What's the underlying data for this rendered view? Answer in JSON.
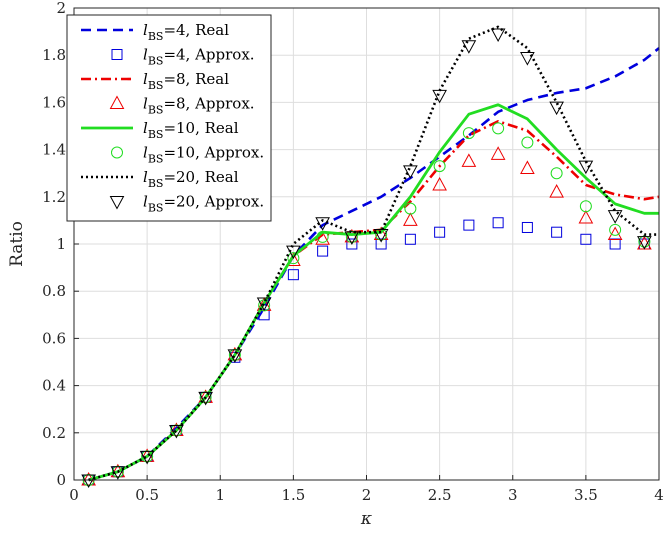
{
  "chart_data": {
    "type": "line",
    "xlabel": "κ",
    "ylabel": "Ratio",
    "xlim": [
      0,
      4
    ],
    "ylim": [
      0,
      2
    ],
    "xticks": [
      "0",
      "0.5",
      "1",
      "1.5",
      "2",
      "2.5",
      "3",
      "3.5",
      "4"
    ],
    "yticks": [
      "0",
      "0.2",
      "0.4",
      "0.6",
      "0.8",
      "1",
      "1.2",
      "1.4",
      "1.6",
      "1.8",
      "2"
    ],
    "grid": true,
    "legend_position": "top-left",
    "series": [
      {
        "name": "lBS=4, Real",
        "legend_l": "l",
        "legend_sub": "BS",
        "legend_rest": "=4, Real",
        "style": "dashed",
        "color": "#0000dd",
        "x": [
          0.1,
          0.3,
          0.5,
          0.7,
          0.9,
          1.1,
          1.3,
          1.5,
          1.7,
          1.9,
          2.1,
          2.3,
          2.5,
          2.7,
          2.9,
          3.1,
          3.3,
          3.5,
          3.7,
          3.9,
          4.0
        ],
        "values": [
          0.0,
          0.035,
          0.1,
          0.22,
          0.35,
          0.53,
          0.73,
          0.95,
          1.08,
          1.14,
          1.2,
          1.28,
          1.37,
          1.46,
          1.56,
          1.61,
          1.64,
          1.66,
          1.71,
          1.78,
          1.83
        ]
      },
      {
        "name": "lBS=4, Approx.",
        "legend_l": "l",
        "legend_sub": "BS",
        "legend_rest": "=4, Approx.",
        "style": "marker-square",
        "color": "#0000dd",
        "x": [
          0.1,
          0.3,
          0.5,
          0.7,
          0.9,
          1.1,
          1.3,
          1.5,
          1.7,
          1.9,
          2.1,
          2.3,
          2.5,
          2.7,
          2.9,
          3.1,
          3.3,
          3.5,
          3.7,
          3.9
        ],
        "values": [
          0.0,
          0.035,
          0.1,
          0.21,
          0.35,
          0.52,
          0.7,
          0.87,
          0.97,
          1.0,
          1.0,
          1.02,
          1.05,
          1.08,
          1.09,
          1.07,
          1.05,
          1.02,
          1.0,
          1.0
        ]
      },
      {
        "name": "lBS=8, Real",
        "legend_l": "l",
        "legend_sub": "BS",
        "legend_rest": "=8, Real",
        "style": "dashdot",
        "color": "#ee0000",
        "x": [
          0.1,
          0.3,
          0.5,
          0.7,
          0.9,
          1.1,
          1.3,
          1.5,
          1.7,
          1.9,
          2.1,
          2.3,
          2.5,
          2.7,
          2.9,
          3.1,
          3.3,
          3.5,
          3.7,
          3.9,
          4.0
        ],
        "values": [
          0.0,
          0.035,
          0.1,
          0.21,
          0.35,
          0.53,
          0.75,
          0.95,
          1.04,
          1.05,
          1.06,
          1.18,
          1.33,
          1.46,
          1.52,
          1.48,
          1.37,
          1.25,
          1.21,
          1.19,
          1.2
        ]
      },
      {
        "name": "lBS=8, Approx.",
        "legend_l": "l",
        "legend_sub": "BS",
        "legend_rest": "=8, Approx.",
        "style": "marker-triangle-up",
        "color": "#ee0000",
        "x": [
          0.1,
          0.3,
          0.5,
          0.7,
          0.9,
          1.1,
          1.3,
          1.5,
          1.7,
          1.9,
          2.1,
          2.3,
          2.5,
          2.7,
          2.9,
          3.1,
          3.3,
          3.5,
          3.7,
          3.9
        ],
        "values": [
          0.0,
          0.035,
          0.1,
          0.21,
          0.35,
          0.53,
          0.74,
          0.93,
          1.02,
          1.03,
          1.04,
          1.1,
          1.25,
          1.35,
          1.38,
          1.32,
          1.22,
          1.11,
          1.04,
          1.0
        ]
      },
      {
        "name": "lBS=10, Real",
        "legend_l": "l",
        "legend_sub": "BS",
        "legend_rest": "=10, Real",
        "style": "solid",
        "color": "#22dd22",
        "x": [
          0.1,
          0.3,
          0.5,
          0.7,
          0.9,
          1.1,
          1.3,
          1.5,
          1.7,
          1.9,
          2.1,
          2.3,
          2.5,
          2.7,
          2.9,
          3.1,
          3.3,
          3.5,
          3.7,
          3.9,
          4.0
        ],
        "values": [
          0.0,
          0.035,
          0.1,
          0.21,
          0.35,
          0.53,
          0.75,
          0.95,
          1.05,
          1.04,
          1.05,
          1.2,
          1.39,
          1.55,
          1.59,
          1.53,
          1.4,
          1.28,
          1.17,
          1.13,
          1.13
        ]
      },
      {
        "name": "lBS=10, Approx.",
        "legend_l": "l",
        "legend_sub": "BS",
        "legend_rest": "=10, Approx.",
        "style": "marker-circle",
        "color": "#22dd22",
        "x": [
          0.1,
          0.3,
          0.5,
          0.7,
          0.9,
          1.1,
          1.3,
          1.5,
          1.7,
          1.9,
          2.1,
          2.3,
          2.5,
          2.7,
          2.9,
          3.1,
          3.3,
          3.5,
          3.7,
          3.9
        ],
        "values": [
          0.0,
          0.035,
          0.1,
          0.21,
          0.35,
          0.53,
          0.74,
          0.94,
          1.03,
          1.03,
          1.04,
          1.15,
          1.33,
          1.47,
          1.49,
          1.43,
          1.3,
          1.16,
          1.06,
          1.01
        ]
      },
      {
        "name": "lBS=20, Real",
        "legend_l": "l",
        "legend_sub": "BS",
        "legend_rest": "=20, Real",
        "style": "dotted",
        "color": "#000000",
        "x": [
          0.1,
          0.3,
          0.5,
          0.7,
          0.9,
          1.1,
          1.3,
          1.5,
          1.7,
          1.9,
          2.1,
          2.3,
          2.5,
          2.7,
          2.9,
          3.1,
          3.3,
          3.5,
          3.7,
          3.9,
          4.0
        ],
        "values": [
          0.0,
          0.035,
          0.1,
          0.21,
          0.35,
          0.53,
          0.75,
          1.0,
          1.1,
          1.05,
          1.05,
          1.33,
          1.65,
          1.87,
          1.92,
          1.83,
          1.6,
          1.35,
          1.14,
          1.04,
          1.04
        ]
      },
      {
        "name": "lBS=20, Approx.",
        "legend_l": "l",
        "legend_sub": "BS",
        "legend_rest": "=20, Approx.",
        "style": "marker-triangle-down",
        "color": "#000000",
        "x": [
          0.1,
          0.3,
          0.5,
          0.7,
          0.9,
          1.1,
          1.3,
          1.5,
          1.7,
          1.9,
          2.1,
          2.3,
          2.5,
          2.7,
          2.9,
          3.1,
          3.3,
          3.5,
          3.7,
          3.9
        ],
        "values": [
          0.0,
          0.035,
          0.1,
          0.21,
          0.35,
          0.53,
          0.75,
          0.97,
          1.09,
          1.03,
          1.04,
          1.31,
          1.63,
          1.84,
          1.89,
          1.79,
          1.58,
          1.33,
          1.12,
          1.01
        ]
      }
    ]
  }
}
